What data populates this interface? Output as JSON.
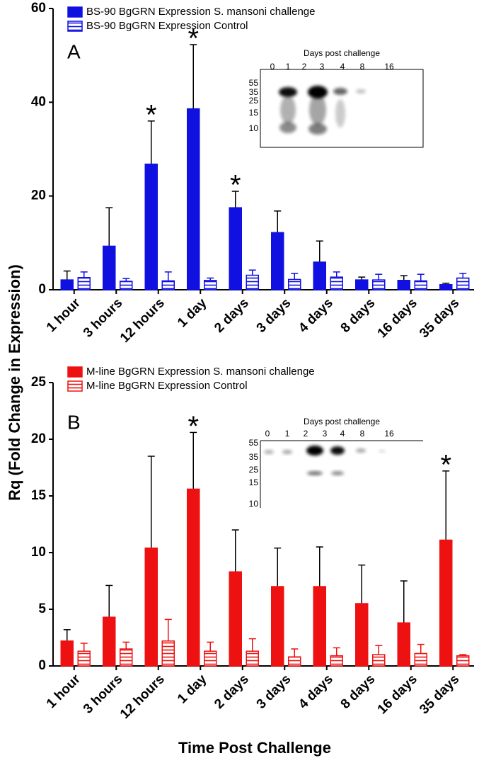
{
  "figure": {
    "y_label": "Rq (Fold Change in Expression)",
    "x_label": "Time Post Challenge"
  },
  "chart_data": [
    {
      "type": "bar",
      "panel_label": "A",
      "categories": [
        "1 hour",
        "3 hours",
        "12 hours",
        "1 day",
        "2 days",
        "3 days",
        "4 days",
        "8 days",
        "16 days",
        "35 days"
      ],
      "series": [
        {
          "name": "BS-90 BgGRN Expression S. mansoni challenge",
          "color": "#1010e0",
          "fill": "solid",
          "values": [
            2.1,
            9.3,
            26.8,
            38.6,
            17.5,
            12.2,
            5.9,
            2.1,
            2.0,
            1.1
          ],
          "errors": [
            1.9,
            8.2,
            9.2,
            13.7,
            3.5,
            4.6,
            4.5,
            0.6,
            1.0,
            0.3
          ]
        },
        {
          "name": "BS-90 BgGRN Expression Control",
          "color": "#1010e0",
          "fill": "hatched",
          "values": [
            2.6,
            1.8,
            1.9,
            2.0,
            3.1,
            2.2,
            2.7,
            2.1,
            1.9,
            2.5
          ],
          "errors": [
            1.2,
            0.6,
            1.9,
            0.5,
            1.1,
            1.3,
            1.1,
            1.2,
            1.4,
            1.0
          ]
        }
      ],
      "ylim": [
        0,
        60
      ],
      "yticks": [
        0,
        20,
        40,
        60
      ],
      "annotations": [
        {
          "text": "*",
          "category": "12 hours"
        },
        {
          "text": "*",
          "category": "1 day"
        },
        {
          "text": "*",
          "category": "2 days"
        }
      ],
      "inset": {
        "title": "Days post challenge",
        "lanes": [
          "0",
          "1",
          "2",
          "3",
          "4",
          "8",
          "16"
        ],
        "markers": [
          "55",
          "35",
          "25",
          "15",
          "10"
        ]
      }
    },
    {
      "type": "bar",
      "panel_label": "B",
      "categories": [
        "1 hour",
        "3 hours",
        "12 hours",
        "1 day",
        "2 days",
        "3 days",
        "4 days",
        "8 days",
        "16 days",
        "35 days"
      ],
      "series": [
        {
          "name": "M-line BgGRN Expression S. mansoni challenge",
          "color": "#ee1111",
          "fill": "solid",
          "values": [
            2.2,
            4.3,
            10.4,
            15.6,
            8.3,
            7.0,
            7.0,
            5.5,
            3.8,
            11.1
          ],
          "errors": [
            1.0,
            2.8,
            8.1,
            5.0,
            3.7,
            3.4,
            3.5,
            3.4,
            3.7,
            6.1
          ]
        },
        {
          "name": "M-line BgGRN Expression Control",
          "color": "#ee1111",
          "fill": "hatched",
          "values": [
            1.3,
            1.5,
            2.2,
            1.3,
            1.3,
            0.8,
            0.9,
            1.0,
            1.1,
            0.9
          ],
          "errors": [
            0.7,
            0.6,
            1.9,
            0.8,
            1.1,
            0.7,
            0.7,
            0.8,
            0.8,
            0.1
          ]
        }
      ],
      "ylim": [
        0,
        25
      ],
      "yticks": [
        0,
        5,
        10,
        15,
        20,
        25
      ],
      "annotations": [
        {
          "text": "*",
          "category": "1 day"
        },
        {
          "text": "*",
          "category": "35 days"
        }
      ],
      "inset": {
        "title": "Days post challenge",
        "lanes": [
          "0",
          "1",
          "2",
          "3",
          "4",
          "8",
          "16"
        ],
        "markers": [
          "55",
          "35",
          "25",
          "15",
          "10"
        ]
      }
    }
  ]
}
